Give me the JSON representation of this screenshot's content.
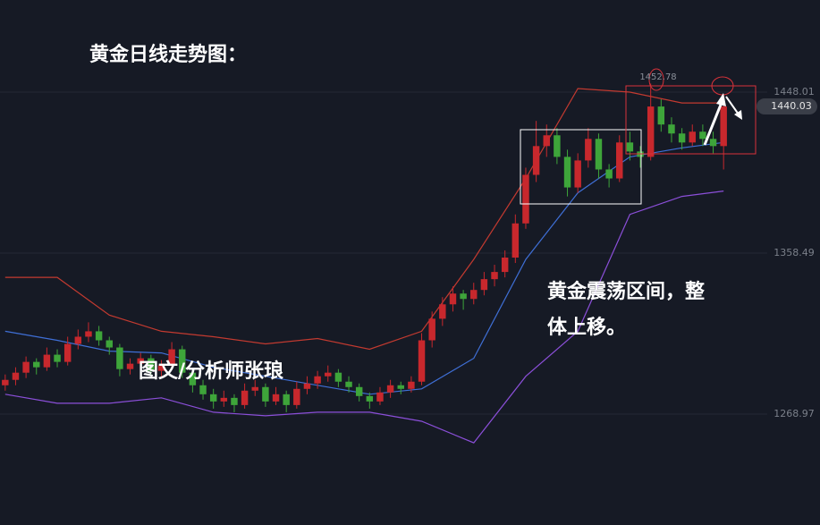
{
  "chart_data": {
    "type": "candlestick",
    "title": "黄金日线走势图：",
    "annotations": [
      "黄金震荡区间，整",
      "体上移。",
      "图文/分析师张琅"
    ],
    "up_color": "#c8282d",
    "down_color": "#3ea53a",
    "candles": [
      [
        1285,
        1291,
        1282,
        1288
      ],
      [
        1288,
        1295,
        1285,
        1292
      ],
      [
        1292,
        1301,
        1289,
        1298
      ],
      [
        1298,
        1300,
        1291,
        1295
      ],
      [
        1295,
        1306,
        1293,
        1302
      ],
      [
        1302,
        1305,
        1295,
        1298
      ],
      [
        1298,
        1312,
        1296,
        1308
      ],
      [
        1308,
        1316,
        1305,
        1312
      ],
      [
        1312,
        1320,
        1309,
        1315
      ],
      [
        1315,
        1318,
        1307,
        1310
      ],
      [
        1310,
        1312,
        1302,
        1306
      ],
      [
        1306,
        1308,
        1290,
        1294
      ],
      [
        1294,
        1300,
        1291,
        1297
      ],
      [
        1297,
        1303,
        1294,
        1300
      ],
      [
        1300,
        1302,
        1290,
        1293
      ],
      [
        1293,
        1299,
        1290,
        1296
      ],
      [
        1296,
        1309,
        1294,
        1305
      ],
      [
        1305,
        1307,
        1289,
        1292
      ],
      [
        1292,
        1294,
        1281,
        1285
      ],
      [
        1285,
        1288,
        1277,
        1280
      ],
      [
        1280,
        1283,
        1272,
        1276
      ],
      [
        1276,
        1282,
        1273,
        1278
      ],
      [
        1278,
        1280,
        1270,
        1274
      ],
      [
        1274,
        1286,
        1272,
        1282
      ],
      [
        1282,
        1288,
        1279,
        1284
      ],
      [
        1284,
        1286,
        1273,
        1276
      ],
      [
        1276,
        1284,
        1274,
        1280
      ],
      [
        1280,
        1282,
        1270,
        1274
      ],
      [
        1274,
        1287,
        1272,
        1283
      ],
      [
        1283,
        1290,
        1280,
        1286
      ],
      [
        1286,
        1293,
        1283,
        1290
      ],
      [
        1290,
        1296,
        1287,
        1292
      ],
      [
        1292,
        1294,
        1284,
        1287
      ],
      [
        1287,
        1290,
        1281,
        1284
      ],
      [
        1284,
        1286,
        1276,
        1279
      ],
      [
        1279,
        1281,
        1272,
        1276
      ],
      [
        1276,
        1284,
        1274,
        1281
      ],
      [
        1281,
        1288,
        1278,
        1285
      ],
      [
        1285,
        1287,
        1280,
        1283
      ],
      [
        1283,
        1290,
        1281,
        1287
      ],
      [
        1287,
        1314,
        1285,
        1310
      ],
      [
        1310,
        1326,
        1306,
        1322
      ],
      [
        1322,
        1334,
        1318,
        1330
      ],
      [
        1330,
        1340,
        1326,
        1336
      ],
      [
        1336,
        1338,
        1327,
        1333
      ],
      [
        1333,
        1342,
        1330,
        1338
      ],
      [
        1338,
        1348,
        1335,
        1344
      ],
      [
        1344,
        1352,
        1340,
        1348
      ],
      [
        1348,
        1360,
        1345,
        1356
      ],
      [
        1356,
        1380,
        1353,
        1375
      ],
      [
        1375,
        1406,
        1372,
        1402
      ],
      [
        1402,
        1432,
        1398,
        1418
      ],
      [
        1418,
        1430,
        1412,
        1424
      ],
      [
        1424,
        1428,
        1408,
        1412
      ],
      [
        1412,
        1416,
        1390,
        1395
      ],
      [
        1395,
        1414,
        1392,
        1410
      ],
      [
        1410,
        1428,
        1406,
        1422
      ],
      [
        1422,
        1425,
        1400,
        1405
      ],
      [
        1405,
        1408,
        1395,
        1400
      ],
      [
        1400,
        1424,
        1398,
        1420
      ],
      [
        1420,
        1426,
        1410,
        1415
      ],
      [
        1415,
        1418,
        1406,
        1412
      ],
      [
        1412,
        1452.78,
        1410,
        1440
      ],
      [
        1440,
        1444,
        1426,
        1430
      ],
      [
        1430,
        1434,
        1420,
        1425
      ],
      [
        1425,
        1428,
        1416,
        1420
      ],
      [
        1420,
        1430,
        1418,
        1426
      ],
      [
        1426,
        1430,
        1418,
        1422
      ],
      [
        1422,
        1426,
        1414,
        1418
      ],
      [
        1418,
        1446,
        1405,
        1440.03
      ]
    ],
    "line_x": [
      0,
      5,
      10,
      15,
      20,
      25,
      30,
      35,
      40,
      45,
      50,
      55,
      60,
      65,
      69
    ],
    "lines": [
      {
        "color": "#c33a30",
        "values": [
          1345,
          1345,
          1324,
          1315,
          1312,
          1308,
          1311,
          1305,
          1315,
          1355,
          1400,
          1450,
          1448,
          1442,
          1442
        ]
      },
      {
        "color": "#3f6fd6",
        "values": [
          1315,
          1310,
          1304,
          1303,
          1295,
          1290,
          1285,
          1280,
          1283,
          1300,
          1355,
          1392,
          1412,
          1417,
          1420
        ]
      },
      {
        "color": "#8b4fd9",
        "values": [
          1280,
          1275,
          1275,
          1278,
          1270,
          1268,
          1270,
          1270,
          1265,
          1253,
          1290,
          1315,
          1380,
          1390,
          1393
        ]
      }
    ],
    "ylim": [
      1207.3,
      1499.23
    ],
    "yticks": [
      1448.01,
      1358.49,
      1268.97
    ]
  }
}
